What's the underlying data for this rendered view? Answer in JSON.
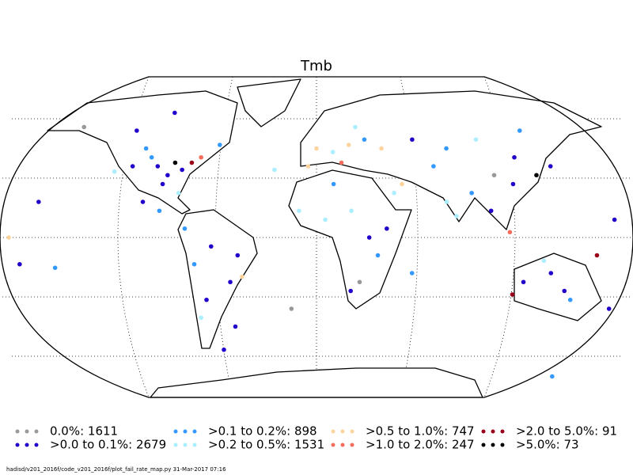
{
  "title": "Tmb",
  "legend": [
    {
      "label": "0.0%: 1611",
      "color": "#999999"
    },
    {
      "label": ">0.0 to 0.1%: 2679",
      "color": "#2200cc"
    },
    {
      "label": ">0.1 to 0.2%: 898",
      "color": "#3399ff"
    },
    {
      "label": ">0.2 to 0.5%: 1531",
      "color": "#aaeeff"
    },
    {
      "label": ">0.5 to 1.0%: 747",
      "color": "#fdd49e"
    },
    {
      "label": ">1.0 to 2.0%: 247",
      "color": "#f46d5a"
    },
    {
      "label": ">2.0 to 5.0%: 91",
      "color": "#99001a"
    },
    {
      "label": ">5.0%: 73",
      "color": "#000000"
    }
  ],
  "stations": [
    {
      "lon": -95,
      "lat": 40,
      "cat": 1
    },
    {
      "lon": -88,
      "lat": 35,
      "cat": 1
    },
    {
      "lon": -80,
      "lat": 38,
      "cat": 1
    },
    {
      "lon": -100,
      "lat": 45,
      "cat": 2
    },
    {
      "lon": -110,
      "lat": 40,
      "cat": 1
    },
    {
      "lon": -120,
      "lat": 37,
      "cat": 3
    },
    {
      "lon": -75,
      "lat": 42,
      "cat": 6
    },
    {
      "lon": -85,
      "lat": 42,
      "cat": 7
    },
    {
      "lon": -90,
      "lat": 30,
      "cat": 1
    },
    {
      "lon": -105,
      "lat": 50,
      "cat": 2
    },
    {
      "lon": -115,
      "lat": 60,
      "cat": 1
    },
    {
      "lon": -150,
      "lat": 62,
      "cat": 0
    },
    {
      "lon": -80,
      "lat": 25,
      "cat": 3
    },
    {
      "lon": -70,
      "lat": 45,
      "cat": 5
    },
    {
      "lon": -95,
      "lat": 70,
      "cat": 1
    },
    {
      "lon": -60,
      "lat": 52,
      "cat": 2
    },
    {
      "lon": -100,
      "lat": 20,
      "cat": 1
    },
    {
      "lon": -90,
      "lat": 15,
      "cat": 2
    },
    {
      "lon": -60,
      "lat": -5,
      "cat": 1
    },
    {
      "lon": -45,
      "lat": -10,
      "cat": 1
    },
    {
      "lon": -70,
      "lat": -15,
      "cat": 2
    },
    {
      "lon": -50,
      "lat": -25,
      "cat": 1
    },
    {
      "lon": -65,
      "lat": -35,
      "cat": 1
    },
    {
      "lon": -70,
      "lat": -45,
      "cat": 3
    },
    {
      "lon": -75,
      "lat": 5,
      "cat": 2
    },
    {
      "lon": -43,
      "lat": -22,
      "cat": 4
    },
    {
      "lon": 0,
      "lat": 50,
      "cat": 4
    },
    {
      "lon": 10,
      "lat": 48,
      "cat": 3
    },
    {
      "lon": 20,
      "lat": 52,
      "cat": 4
    },
    {
      "lon": 30,
      "lat": 55,
      "cat": 2
    },
    {
      "lon": -5,
      "lat": 40,
      "cat": 4
    },
    {
      "lon": 15,
      "lat": 42,
      "cat": 5
    },
    {
      "lon": 25,
      "lat": 62,
      "cat": 3
    },
    {
      "lon": 40,
      "lat": 50,
      "cat": 4
    },
    {
      "lon": 60,
      "lat": 55,
      "cat": 1
    },
    {
      "lon": 80,
      "lat": 50,
      "cat": 2
    },
    {
      "lon": 100,
      "lat": 55,
      "cat": 3
    },
    {
      "lon": 120,
      "lat": 45,
      "cat": 1
    },
    {
      "lon": 115,
      "lat": 30,
      "cat": 1
    },
    {
      "lon": 105,
      "lat": 35,
      "cat": 0
    },
    {
      "lon": 90,
      "lat": 25,
      "cat": 2
    },
    {
      "lon": 75,
      "lat": 20,
      "cat": 3
    },
    {
      "lon": 80,
      "lat": 12,
      "cat": 3
    },
    {
      "lon": 130,
      "lat": 35,
      "cat": 7
    },
    {
      "lon": 140,
      "lat": 40,
      "cat": 1
    },
    {
      "lon": 130,
      "lat": 60,
      "cat": 2
    },
    {
      "lon": 70,
      "lat": 40,
      "cat": 2
    },
    {
      "lon": 50,
      "lat": 30,
      "cat": 4
    },
    {
      "lon": 45,
      "lat": 25,
      "cat": 3
    },
    {
      "lon": 100,
      "lat": 15,
      "cat": 1
    },
    {
      "lon": 110,
      "lat": 3,
      "cat": 5
    },
    {
      "lon": 5,
      "lat": 10,
      "cat": 3
    },
    {
      "lon": 20,
      "lat": 15,
      "cat": 3
    },
    {
      "lon": 30,
      "lat": 0,
      "cat": 1
    },
    {
      "lon": 35,
      "lat": -10,
      "cat": 2
    },
    {
      "lon": 25,
      "lat": -25,
      "cat": 0
    },
    {
      "lon": 20,
      "lat": -30,
      "cat": 1
    },
    {
      "lon": 10,
      "lat": 30,
      "cat": 2
    },
    {
      "lon": -10,
      "lat": 15,
      "cat": 3
    },
    {
      "lon": 40,
      "lat": 5,
      "cat": 1
    },
    {
      "lon": 120,
      "lat": -25,
      "cat": 1
    },
    {
      "lon": 135,
      "lat": -20,
      "cat": 1
    },
    {
      "lon": 145,
      "lat": -30,
      "cat": 1
    },
    {
      "lon": 150,
      "lat": -35,
      "cat": 2
    },
    {
      "lon": 130,
      "lat": -13,
      "cat": 3
    },
    {
      "lon": 115,
      "lat": -32,
      "cat": 6
    },
    {
      "lon": 175,
      "lat": -40,
      "cat": 1
    },
    {
      "lon": -160,
      "lat": 20,
      "cat": 1
    },
    {
      "lon": -170,
      "lat": -15,
      "cat": 1
    },
    {
      "lon": -150,
      "lat": -17,
      "cat": 2
    },
    {
      "lon": -175,
      "lat": 0,
      "cat": 4
    },
    {
      "lon": 170,
      "lat": 10,
      "cat": 1
    },
    {
      "lon": 160,
      "lat": -10,
      "cat": 6
    },
    {
      "lon": -25,
      "lat": 38,
      "cat": 3
    },
    {
      "lon": -15,
      "lat": -40,
      "cat": 0
    },
    {
      "lon": 55,
      "lat": -20,
      "cat": 2
    },
    {
      "lon": -50,
      "lat": -50,
      "cat": 1
    },
    {
      "lon": -60,
      "lat": -63,
      "cat": 1
    },
    {
      "lon": 165,
      "lat": -78,
      "cat": 2
    }
  ],
  "footer": "hadisd/v201_2016f/code_v201_2016f/plot_fail_rate_map.py   31-Mar-2017 07:16"
}
